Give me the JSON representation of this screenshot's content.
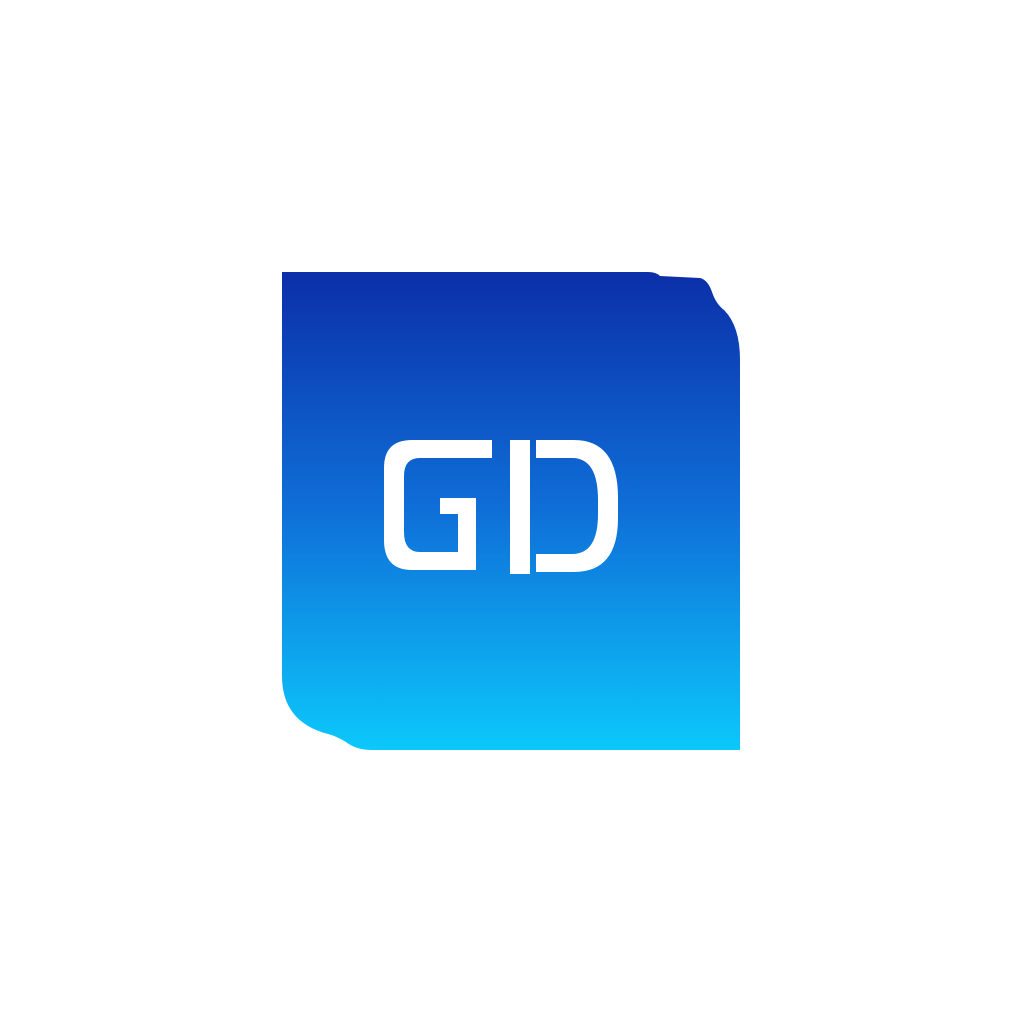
{
  "logo": {
    "monogram": "GD",
    "colors": {
      "gradient_top": "#0b2fa8",
      "gradient_mid": "#0f6fd8",
      "gradient_bottom": "#0cc8fb",
      "letters": "#ffffff",
      "background": "#ffffff"
    }
  }
}
